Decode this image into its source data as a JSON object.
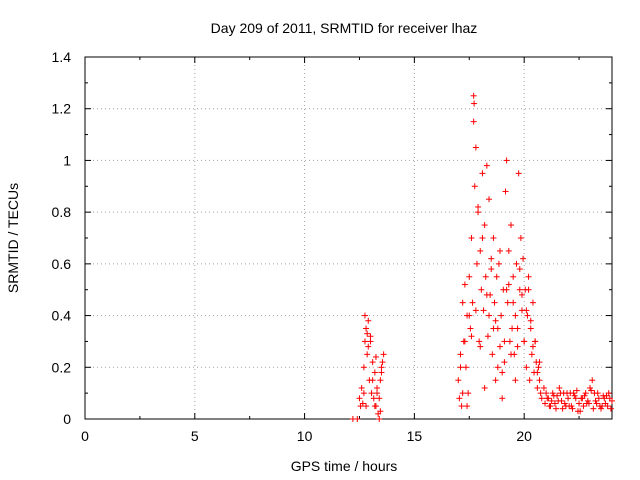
{
  "chart_data": {
    "type": "scatter",
    "title": "Day 209 of 2011, SRMTID for receiver lhaz",
    "xlabel": "GPS time / hours",
    "ylabel": "SRMTID / TECUs",
    "xlim": [
      0,
      24
    ],
    "ylim": [
      0,
      1.4
    ],
    "xticks": [
      "0",
      "5",
      "10",
      "15",
      "20"
    ],
    "xtick_values": [
      0,
      5,
      10,
      15,
      20
    ],
    "yticks": [
      "0",
      "0.2",
      "0.4",
      "0.6",
      "0.8",
      "1",
      "1.2",
      "1.4"
    ],
    "ytick_values": [
      0,
      0.2,
      0.4,
      0.6,
      0.8,
      1.0,
      1.2,
      1.4
    ],
    "grid": true,
    "marker": "+",
    "colors": {
      "series": "#ff0000",
      "grid": "#a0a0a0",
      "axis": "#000000"
    },
    "series": [
      {
        "x": [
          12.2,
          12.4,
          12.5,
          12.55,
          12.6,
          12.65,
          12.7,
          12.75,
          12.8,
          12.85,
          12.9,
          12.95,
          13.0,
          13.05,
          13.1,
          13.15,
          13.2,
          13.25,
          13.3,
          13.35,
          13.4,
          13.45,
          13.5,
          13.55,
          13.6,
          12.7,
          12.8,
          12.9,
          13.0,
          13.1,
          13.2,
          13.3,
          13.4,
          13.5,
          12.75,
          12.85,
          13.25,
          13.45,
          17.0,
          17.05,
          17.1,
          17.15,
          17.2,
          17.25,
          17.3,
          17.35,
          17.4,
          17.45,
          17.5,
          17.55,
          17.6,
          17.65,
          17.7,
          17.72,
          17.75,
          17.8,
          17.85,
          17.9,
          17.95,
          18.0,
          18.05,
          18.1,
          18.15,
          18.2,
          18.25,
          18.3,
          18.35,
          18.4,
          18.45,
          18.5,
          18.55,
          18.6,
          18.65,
          18.7,
          18.75,
          18.8,
          18.85,
          18.9,
          18.95,
          19.0,
          19.05,
          19.1,
          19.15,
          19.2,
          19.25,
          19.3,
          19.35,
          19.4,
          19.45,
          19.5,
          19.55,
          19.6,
          19.65,
          19.7,
          19.75,
          19.8,
          19.85,
          19.9,
          19.95,
          20.0,
          20.05,
          20.1,
          20.15,
          20.2,
          20.25,
          20.3,
          20.35,
          20.4,
          20.45,
          20.5,
          20.55,
          20.6,
          20.65,
          20.7,
          20.75,
          20.8,
          17.1,
          17.3,
          17.5,
          17.7,
          17.9,
          18.1,
          18.3,
          18.5,
          18.7,
          18.9,
          19.1,
          19.3,
          19.5,
          19.7,
          19.9,
          20.1,
          20.3,
          20.5,
          20.7,
          17.2,
          17.4,
          17.6,
          17.8,
          18.0,
          18.2,
          18.4,
          18.6,
          18.8,
          19.0,
          19.2,
          19.4,
          19.6,
          19.8,
          20.0,
          20.2,
          20.4,
          20.6,
          20.9,
          21.0,
          21.1,
          21.2,
          21.3,
          21.4,
          21.5,
          21.6,
          21.7,
          21.8,
          21.9,
          22.0,
          22.1,
          22.2,
          22.3,
          22.4,
          22.5,
          22.6,
          22.7,
          22.8,
          22.9,
          23.0,
          23.1,
          23.2,
          23.3,
          23.4,
          23.5,
          23.6,
          23.7,
          23.8,
          23.9,
          24.0,
          20.95,
          21.15,
          21.35,
          21.55,
          21.75,
          21.95,
          22.15,
          22.35,
          22.55,
          22.75,
          22.95,
          23.15,
          23.35,
          23.55,
          23.75,
          23.95,
          21.05,
          21.25,
          21.45,
          21.65,
          21.85,
          22.05,
          22.25,
          22.45,
          22.65,
          22.85,
          23.05,
          23.25,
          23.45,
          23.65,
          23.85
        ],
        "y": [
          0.0,
          0.0,
          0.08,
          0.05,
          0.12,
          0.06,
          0.2,
          0.4,
          0.35,
          0.25,
          0.38,
          0.15,
          0.3,
          0.1,
          0.22,
          0.08,
          0.18,
          0.05,
          0.12,
          0.02,
          0.08,
          0.15,
          0.2,
          0.22,
          0.25,
          0.1,
          0.05,
          0.28,
          0.32,
          0.15,
          0.05,
          0.1,
          0.0,
          0.18,
          0.3,
          0.33,
          0.24,
          0.03,
          0.15,
          0.08,
          0.25,
          0.05,
          0.45,
          0.3,
          0.52,
          0.2,
          0.4,
          0.1,
          0.55,
          0.35,
          0.7,
          0.45,
          1.25,
          1.22,
          0.9,
          1.05,
          0.6,
          0.8,
          0.3,
          0.65,
          0.5,
          0.95,
          0.42,
          0.75,
          0.55,
          0.98,
          0.32,
          0.85,
          0.48,
          0.62,
          0.25,
          0.7,
          0.45,
          0.15,
          0.55,
          0.35,
          0.6,
          0.28,
          0.4,
          0.18,
          0.5,
          0.22,
          0.88,
          1.0,
          0.45,
          0.65,
          0.3,
          0.75,
          0.35,
          0.55,
          0.25,
          0.4,
          0.6,
          0.28,
          0.95,
          0.5,
          0.7,
          0.42,
          0.62,
          0.3,
          0.5,
          0.2,
          0.4,
          0.55,
          0.15,
          0.35,
          0.25,
          0.45,
          0.18,
          0.3,
          0.22,
          0.12,
          0.2,
          0.15,
          0.1,
          0.08,
          0.2,
          0.3,
          0.4,
          1.15,
          0.82,
          0.7,
          0.48,
          0.58,
          0.38,
          0.65,
          0.3,
          0.52,
          0.45,
          0.35,
          0.48,
          0.42,
          0.38,
          0.3,
          0.22,
          0.1,
          0.05,
          0.32,
          0.42,
          0.28,
          0.12,
          0.4,
          0.35,
          0.2,
          0.08,
          0.5,
          0.25,
          0.15,
          0.58,
          0.3,
          0.5,
          0.28,
          0.18,
          0.12,
          0.1,
          0.08,
          0.05,
          0.1,
          0.06,
          0.09,
          0.12,
          0.07,
          0.1,
          0.05,
          0.08,
          0.1,
          0.04,
          0.09,
          0.11,
          0.06,
          0.08,
          0.05,
          0.1,
          0.07,
          0.12,
          0.15,
          0.1,
          0.06,
          0.08,
          0.04,
          0.09,
          0.06,
          0.05,
          0.08,
          0.07,
          0.06,
          0.05,
          0.09,
          0.07,
          0.04,
          0.1,
          0.05,
          0.08,
          0.03,
          0.09,
          0.06,
          0.04,
          0.1,
          0.05,
          0.09,
          0.04,
          0.08,
          0.07,
          0.04,
          0.1,
          0.06,
          0.05,
          0.1,
          0.03,
          0.08,
          0.06,
          0.11,
          0.07,
          0.05,
          0.08,
          0.1
        ]
      }
    ]
  }
}
